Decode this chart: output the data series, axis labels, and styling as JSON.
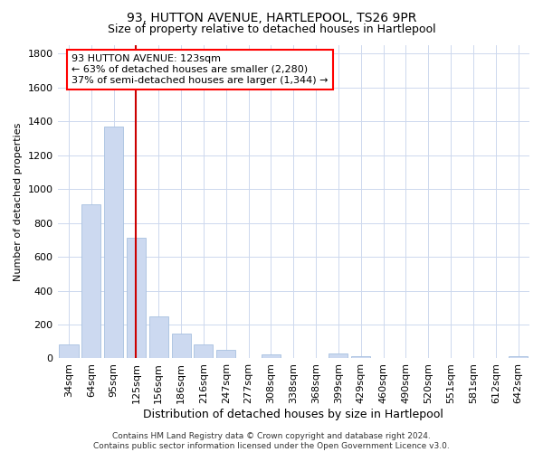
{
  "title1": "93, HUTTON AVENUE, HARTLEPOOL, TS26 9PR",
  "title2": "Size of property relative to detached houses in Hartlepool",
  "xlabel": "Distribution of detached houses by size in Hartlepool",
  "ylabel": "Number of detached properties",
  "categories": [
    "34sqm",
    "64sqm",
    "95sqm",
    "125sqm",
    "156sqm",
    "186sqm",
    "216sqm",
    "247sqm",
    "277sqm",
    "308sqm",
    "338sqm",
    "368sqm",
    "399sqm",
    "429sqm",
    "460sqm",
    "490sqm",
    "520sqm",
    "551sqm",
    "581sqm",
    "612sqm",
    "642sqm"
  ],
  "values": [
    80,
    910,
    1370,
    710,
    250,
    145,
    85,
    50,
    0,
    25,
    0,
    0,
    30,
    15,
    0,
    0,
    0,
    0,
    0,
    0,
    15
  ],
  "bar_color": "#ccd9f0",
  "bar_edge_color": "#a8c0e0",
  "vline_x_index": 3,
  "vline_color": "#cc0000",
  "annotation_line1": "93 HUTTON AVENUE: 123sqm",
  "annotation_line2": "← 63% of detached houses are smaller (2,280)",
  "annotation_line3": "37% of semi-detached houses are larger (1,344) →",
  "ylim": [
    0,
    1850
  ],
  "yticks": [
    0,
    200,
    400,
    600,
    800,
    1000,
    1200,
    1400,
    1600,
    1800
  ],
  "bg_color": "#ffffff",
  "grid_color": "#cdd8ee",
  "footnote": "Contains HM Land Registry data © Crown copyright and database right 2024.\nContains public sector information licensed under the Open Government Licence v3.0.",
  "title1_fontsize": 10,
  "title2_fontsize": 9,
  "xlabel_fontsize": 9,
  "ylabel_fontsize": 8,
  "tick_fontsize": 8,
  "annotation_fontsize": 8,
  "footnote_fontsize": 6.5
}
